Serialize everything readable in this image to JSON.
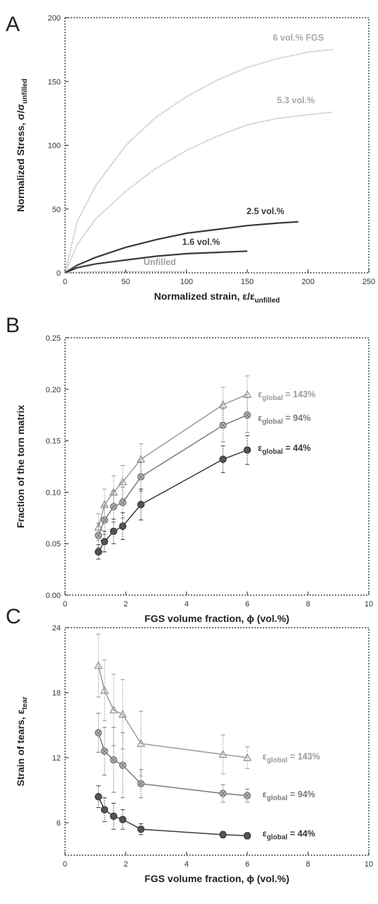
{
  "chart_data": [
    {
      "panel": "A",
      "type": "line",
      "xlabel": "Normalized strain, ε/ε",
      "xlabel_sub": "unfilled",
      "ylabel": "Normalized Stress, σ/σ",
      "ylabel_sub": "unfilled",
      "xlim": [
        0,
        250
      ],
      "ylim": [
        0,
        200
      ],
      "xticks": [
        0,
        50,
        100,
        150,
        200,
        250
      ],
      "yticks": [
        0,
        50,
        100,
        150,
        200
      ],
      "series": [
        {
          "name": "6 vol.% FGS",
          "color": "#a8a8a8",
          "x": [
            0,
            10,
            25,
            50,
            75,
            100,
            125,
            150,
            175,
            200,
            220
          ],
          "y": [
            0,
            40,
            68,
            100,
            122,
            138,
            151,
            161,
            168,
            173,
            175
          ]
        },
        {
          "name": "5.3 vol.%",
          "color": "#a8a8a8",
          "x": [
            0,
            10,
            25,
            50,
            75,
            100,
            125,
            150,
            175,
            200,
            220
          ],
          "y": [
            0,
            22,
            42,
            64,
            82,
            96,
            107,
            116,
            121,
            124,
            126
          ]
        },
        {
          "name": "2.5 vol.%",
          "color": "#3a3a3a",
          "x": [
            0,
            10,
            25,
            50,
            75,
            100,
            125,
            150,
            175,
            192
          ],
          "y": [
            0,
            6,
            12,
            20,
            26,
            31,
            34,
            37,
            39,
            40
          ]
        },
        {
          "name": "1.6 vol.%",
          "color": "#3a3a3a",
          "x": [
            0,
            10,
            25,
            50,
            75,
            100,
            125,
            150
          ],
          "y": [
            0,
            4,
            7,
            10,
            13,
            15,
            16,
            17
          ]
        },
        {
          "name": "Unfilled",
          "color": "#a0a0a0",
          "x": [
            0,
            25,
            50,
            75,
            100
          ],
          "y": [
            0,
            1,
            1,
            1,
            1
          ]
        }
      ],
      "annotations": [
        {
          "text": "6 vol.% FGS",
          "x": 192,
          "y": 182,
          "color": "#a8a8a8"
        },
        {
          "text": "5.3 vol.%",
          "x": 190,
          "y": 133,
          "color": "#a8a8a8"
        },
        {
          "text": "2.5 vol.%",
          "x": 165,
          "y": 46,
          "color": "#3a3a3a"
        },
        {
          "text": "1.6 vol.%",
          "x": 112,
          "y": 22,
          "color": "#3a3a3a"
        },
        {
          "text": "Unfilled",
          "x": 78,
          "y": 6,
          "color": "#a0a0a0"
        }
      ]
    },
    {
      "panel": "B",
      "type": "line",
      "xlabel": "FGS volume fraction, ϕ (vol.%)",
      "ylabel": "Fraction of the torn matrix",
      "xlim": [
        0,
        10
      ],
      "ylim": [
        0,
        0.25
      ],
      "xticks": [
        0,
        2,
        4,
        6,
        8,
        10
      ],
      "yticks": [
        "0.00",
        "0.05",
        "0.10",
        "0.15",
        "0.20",
        "0.25"
      ],
      "x": [
        1.1,
        1.3,
        1.6,
        1.9,
        2.5,
        5.2,
        6.0
      ],
      "series": [
        {
          "name": "ε_global = 143%",
          "color": "#9a9a9a",
          "marker": "triangle",
          "y": [
            0.066,
            0.088,
            0.1,
            0.11,
            0.132,
            0.185,
            0.195
          ],
          "err": [
            0.013,
            0.015,
            0.016,
            0.016,
            0.015,
            0.017,
            0.018
          ]
        },
        {
          "name": "ε_global = 94%",
          "color": "#7a7a7a",
          "marker": "circle-x",
          "y": [
            0.058,
            0.073,
            0.086,
            0.09,
            0.115,
            0.165,
            0.175
          ],
          "err": [
            0.012,
            0.014,
            0.015,
            0.015,
            0.014,
            0.016,
            0.017
          ]
        },
        {
          "name": "ε_global = 44%",
          "color": "#3a3a3a",
          "marker": "circle",
          "y": [
            0.042,
            0.052,
            0.062,
            0.067,
            0.088,
            0.132,
            0.141
          ],
          "err": [
            0.007,
            0.01,
            0.012,
            0.013,
            0.015,
            0.013,
            0.014
          ]
        }
      ],
      "labels": [
        {
          "prefix": "ε",
          "sub": "global",
          "suffix": " = 143%",
          "x": 6.35,
          "y": 0.195,
          "color": "#9a9a9a"
        },
        {
          "prefix": "ε",
          "sub": "global",
          "suffix": " = 94%",
          "x": 6.35,
          "y": 0.172,
          "color": "#7a7a7a"
        },
        {
          "prefix": "ε",
          "sub": "global",
          "suffix": " = 44%",
          "x": 6.35,
          "y": 0.143,
          "color": "#3a3a3a"
        }
      ]
    },
    {
      "panel": "C",
      "type": "line",
      "xlabel": "FGS volume fraction, ϕ (vol.%)",
      "ylabel": "Strain of tears, ε",
      "ylabel_sub": "tear",
      "xlim": [
        0,
        10
      ],
      "ylim": [
        3,
        24
      ],
      "xticks": [
        0,
        2,
        4,
        6,
        8,
        10
      ],
      "yticks": [
        6,
        12,
        18,
        24
      ],
      "x": [
        1.1,
        1.3,
        1.6,
        1.9,
        2.5,
        5.2,
        6.0
      ],
      "series": [
        {
          "name": "ε_global = 143%",
          "color": "#9a9a9a",
          "marker": "triangle",
          "y": [
            20.5,
            18.2,
            16.4,
            16.0,
            13.3,
            12.3,
            12.0
          ],
          "err": [
            2.9,
            2.8,
            3.3,
            3.2,
            3.0,
            1.8,
            1.0
          ]
        },
        {
          "name": "ε_global = 94%",
          "color": "#7a7a7a",
          "marker": "circle-x",
          "y": [
            14.3,
            12.6,
            11.8,
            11.3,
            9.6,
            8.7,
            8.5
          ],
          "err": [
            1.8,
            2.2,
            3.0,
            3.0,
            1.3,
            0.8,
            0.6
          ]
        },
        {
          "name": "ε_global = 44%",
          "color": "#3a3a3a",
          "marker": "circle",
          "y": [
            8.4,
            7.2,
            6.6,
            6.3,
            5.4,
            4.9,
            4.8
          ],
          "err": [
            1.0,
            1.1,
            1.2,
            0.9,
            0.5,
            0.3,
            0.3
          ]
        }
      ],
      "labels": [
        {
          "prefix": "ε",
          "sub": "global",
          "suffix": " = 143%",
          "x": 6.5,
          "y": 12.1,
          "color": "#9a9a9a"
        },
        {
          "prefix": "ε",
          "sub": "global",
          "suffix": " = 94%",
          "x": 6.5,
          "y": 8.6,
          "color": "#7a7a7a"
        },
        {
          "prefix": "ε",
          "sub": "global",
          "suffix": " = 44%",
          "x": 6.5,
          "y": 5.0,
          "color": "#3a3a3a"
        }
      ]
    }
  ],
  "panels": {
    "a_letter": "A",
    "b_letter": "B",
    "c_letter": "C"
  }
}
